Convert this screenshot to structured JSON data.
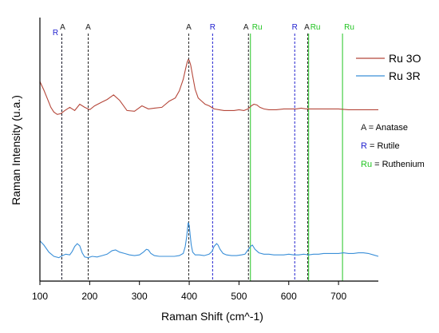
{
  "chart_data": {
    "type": "line",
    "xlabel": "Raman Shift (cm^-1)",
    "ylabel": "Raman Intensity (u.a.)",
    "xlim": [
      100,
      780
    ],
    "xticks": [
      "100",
      "200",
      "300",
      "400",
      "500",
      "600",
      "700"
    ],
    "grid": false,
    "legend_position": "top-right",
    "series": [
      {
        "name": "Ru 3O",
        "color": "#b5473a",
        "x": [
          100,
          108,
          115,
          122,
          128,
          135,
          142,
          150,
          160,
          170,
          180,
          190,
          200,
          210,
          222,
          235,
          248,
          260,
          275,
          290,
          305,
          318,
          330,
          345,
          360,
          372,
          380,
          388,
          393,
          396,
          398,
          400,
          403,
          407,
          412,
          418,
          425,
          432,
          440,
          450,
          460,
          470,
          480,
          490,
          500,
          510,
          518,
          525,
          530,
          536,
          542,
          550,
          560,
          575,
          590,
          605,
          615,
          625,
          635,
          645,
          660,
          680,
          700,
          720,
          740,
          760,
          780
        ],
        "y": [
          55,
          44,
          33,
          22,
          16,
          13,
          14,
          18,
          22,
          18,
          26,
          22,
          19,
          24,
          28,
          32,
          38,
          31,
          18,
          17,
          24,
          20,
          21,
          22,
          30,
          34,
          43,
          58,
          72,
          80,
          83,
          82,
          76,
          62,
          45,
          34,
          30,
          26,
          24,
          20,
          19,
          18,
          18,
          18,
          19,
          18,
          20,
          24,
          26,
          25,
          22,
          20,
          19,
          19,
          20,
          20,
          20,
          21,
          20,
          20,
          20,
          20,
          20,
          19,
          19,
          19,
          19
        ]
      },
      {
        "name": "Ru 3R",
        "color": "#3a8fd8",
        "x": [
          100,
          108,
          118,
          128,
          138,
          145,
          152,
          160,
          165,
          170,
          175,
          180,
          185,
          190,
          197,
          205,
          215,
          225,
          235,
          245,
          252,
          260,
          270,
          280,
          290,
          300,
          308,
          314,
          318,
          323,
          330,
          340,
          350,
          360,
          370,
          380,
          388,
          392,
          395,
          397,
          398,
          400,
          402,
          404,
          407,
          412,
          420,
          430,
          440,
          446,
          450,
          455,
          458,
          462,
          468,
          475,
          485,
          495,
          505,
          512,
          518,
          523,
          527,
          532,
          540,
          550,
          560,
          570,
          580,
          590,
          600,
          610,
          620,
          630,
          640,
          650,
          660,
          670,
          680,
          690,
          700,
          710,
          720,
          730,
          740,
          750,
          760,
          770,
          780
        ],
        "y": [
          30,
          24,
          14,
          8,
          6,
          9,
          11,
          10,
          15,
          22,
          26,
          23,
          13,
          7,
          6,
          8,
          7,
          9,
          11,
          16,
          17,
          14,
          12,
          10,
          9,
          10,
          14,
          18,
          17,
          12,
          9,
          8,
          8,
          8,
          8,
          9,
          12,
          22,
          36,
          50,
          56,
          52,
          38,
          24,
          14,
          10,
          10,
          9,
          11,
          15,
          22,
          26,
          24,
          18,
          12,
          10,
          9,
          9,
          10,
          11,
          17,
          22,
          24,
          18,
          13,
          11,
          11,
          10,
          10,
          10,
          11,
          10,
          10,
          11,
          10,
          11,
          11,
          12,
          12,
          12,
          12,
          13,
          12,
          12,
          13,
          13,
          12,
          10,
          8
        ]
      }
    ],
    "reference_lines": [
      {
        "x": 144,
        "label": "R",
        "kind": "rutile",
        "color": "#1f1fcf"
      },
      {
        "x": 144,
        "label": "A",
        "kind": "anatase",
        "color": "#222222"
      },
      {
        "x": 197,
        "label": "A",
        "kind": "anatase",
        "color": "#222222"
      },
      {
        "x": 399,
        "label": "A",
        "kind": "anatase",
        "color": "#222222"
      },
      {
        "x": 447,
        "label": "R",
        "kind": "rutile",
        "color": "#1f1fcf"
      },
      {
        "x": 519,
        "label": "A",
        "kind": "anatase",
        "color": "#222222"
      },
      {
        "x": 523,
        "label": "Ru",
        "kind": "ruthenium",
        "color": "#22c422"
      },
      {
        "x": 612,
        "label": "R",
        "kind": "rutile",
        "color": "#1f1fcf"
      },
      {
        "x": 638,
        "label": "A",
        "kind": "anatase",
        "color": "#222222"
      },
      {
        "x": 640,
        "label": "Ru",
        "kind": "ruthenium",
        "color": "#22c422"
      },
      {
        "x": 708,
        "label": "Ru",
        "kind": "ruthenium",
        "color": "#22c422"
      }
    ],
    "key": [
      {
        "symbol": "A",
        "text": " = Anatase",
        "color": "#222222"
      },
      {
        "symbol": "R",
        "text": " = Rutile",
        "color": "#1f1fcf"
      },
      {
        "symbol": "Ru",
        "text": " = Ruthenium",
        "color": "#22c422"
      }
    ]
  }
}
